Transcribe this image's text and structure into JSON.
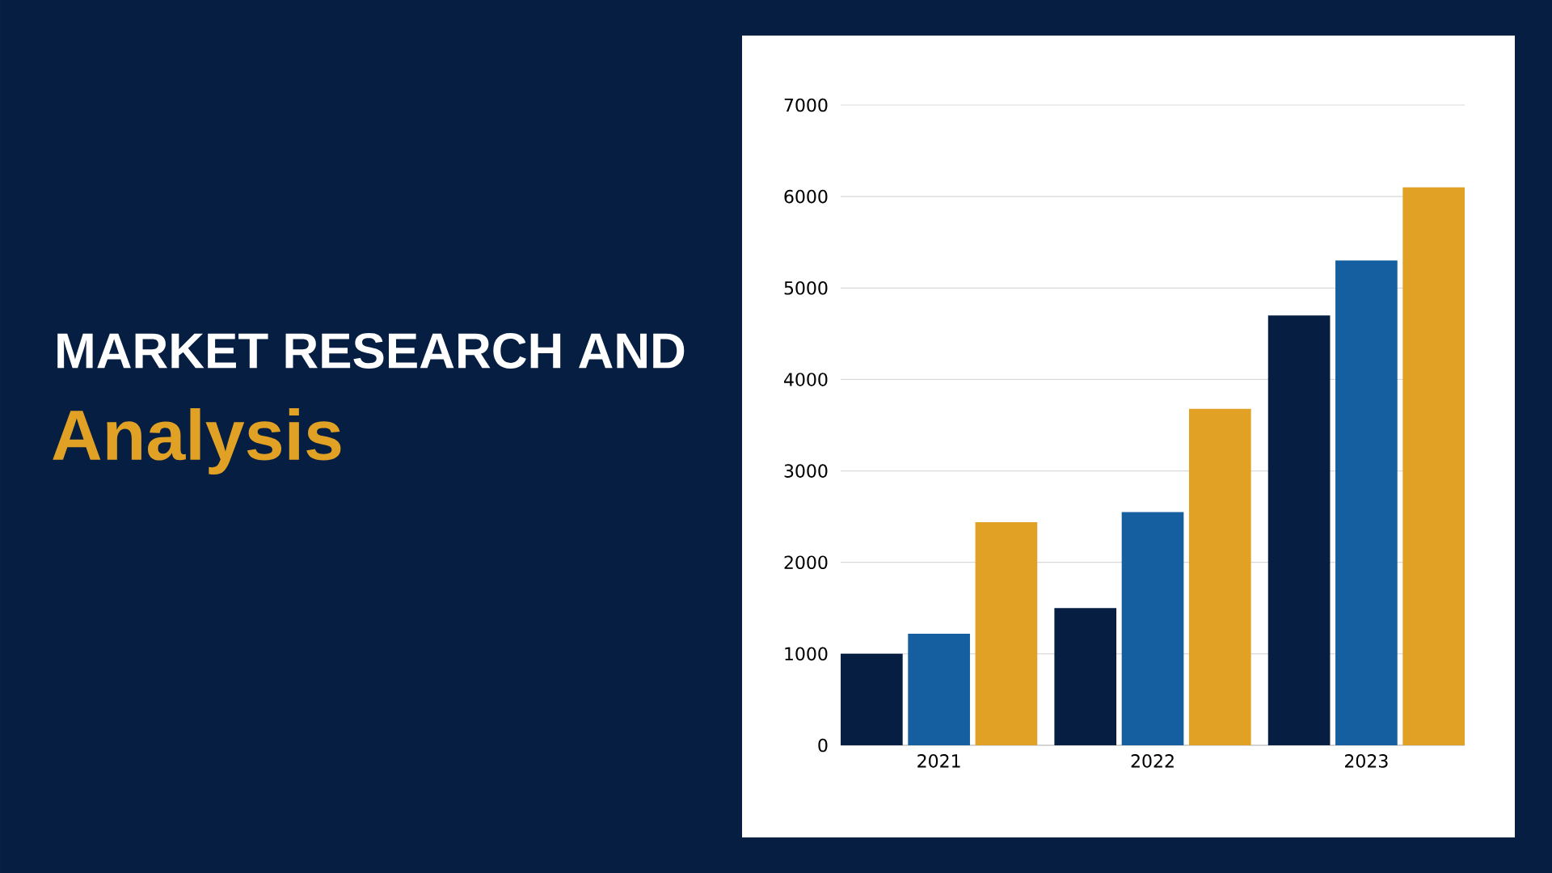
{
  "chart_data": {
    "type": "bar",
    "title": "MARKET RESEARCH AND",
    "subtitle": "Analysis",
    "categories": [
      "2021",
      "2022",
      "2023"
    ],
    "series": [
      {
        "color": "#061e42",
        "values": [
          1000,
          1500,
          4700
        ]
      },
      {
        "color": "#155fa0",
        "values": [
          1220,
          2550,
          5300
        ]
      },
      {
        "color": "#e0a124",
        "values": [
          2440,
          3680,
          6100
        ]
      }
    ],
    "ylim": [
      0,
      7000
    ],
    "yticks": [
      0,
      1000,
      2000,
      3000,
      4000,
      5000,
      6000,
      7000
    ],
    "grid": "y"
  }
}
